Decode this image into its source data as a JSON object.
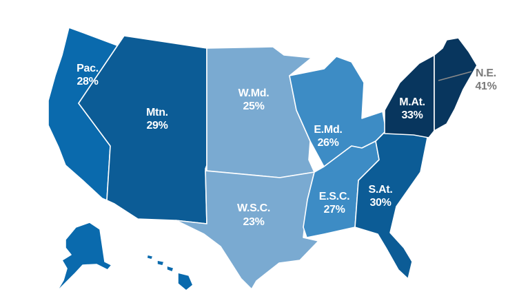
{
  "map": {
    "regions": [
      {
        "key": "pac",
        "name": "Pac.",
        "value": "28%",
        "color": "#0a6aad"
      },
      {
        "key": "mtn",
        "name": "Mtn.",
        "value": "29%",
        "color": "#0c5c96"
      },
      {
        "key": "wmd",
        "name": "W.Md.",
        "value": "25%",
        "color": "#7aaad1"
      },
      {
        "key": "wsc",
        "name": "W.S.C.",
        "value": "23%",
        "color": "#7aaad1"
      },
      {
        "key": "emd",
        "name": "E.Md.",
        "value": "26%",
        "color": "#3d8cc5"
      },
      {
        "key": "esc",
        "name": "E.S.C.",
        "value": "27%",
        "color": "#3d8cc5"
      },
      {
        "key": "sat",
        "name": "S.At.",
        "value": "30%",
        "color": "#0c5c96"
      },
      {
        "key": "mat",
        "name": "M.At.",
        "value": "33%",
        "color": "#08365e"
      },
      {
        "key": "ne",
        "name": "N.E.",
        "value": "41%",
        "color": "#08365e"
      }
    ]
  }
}
